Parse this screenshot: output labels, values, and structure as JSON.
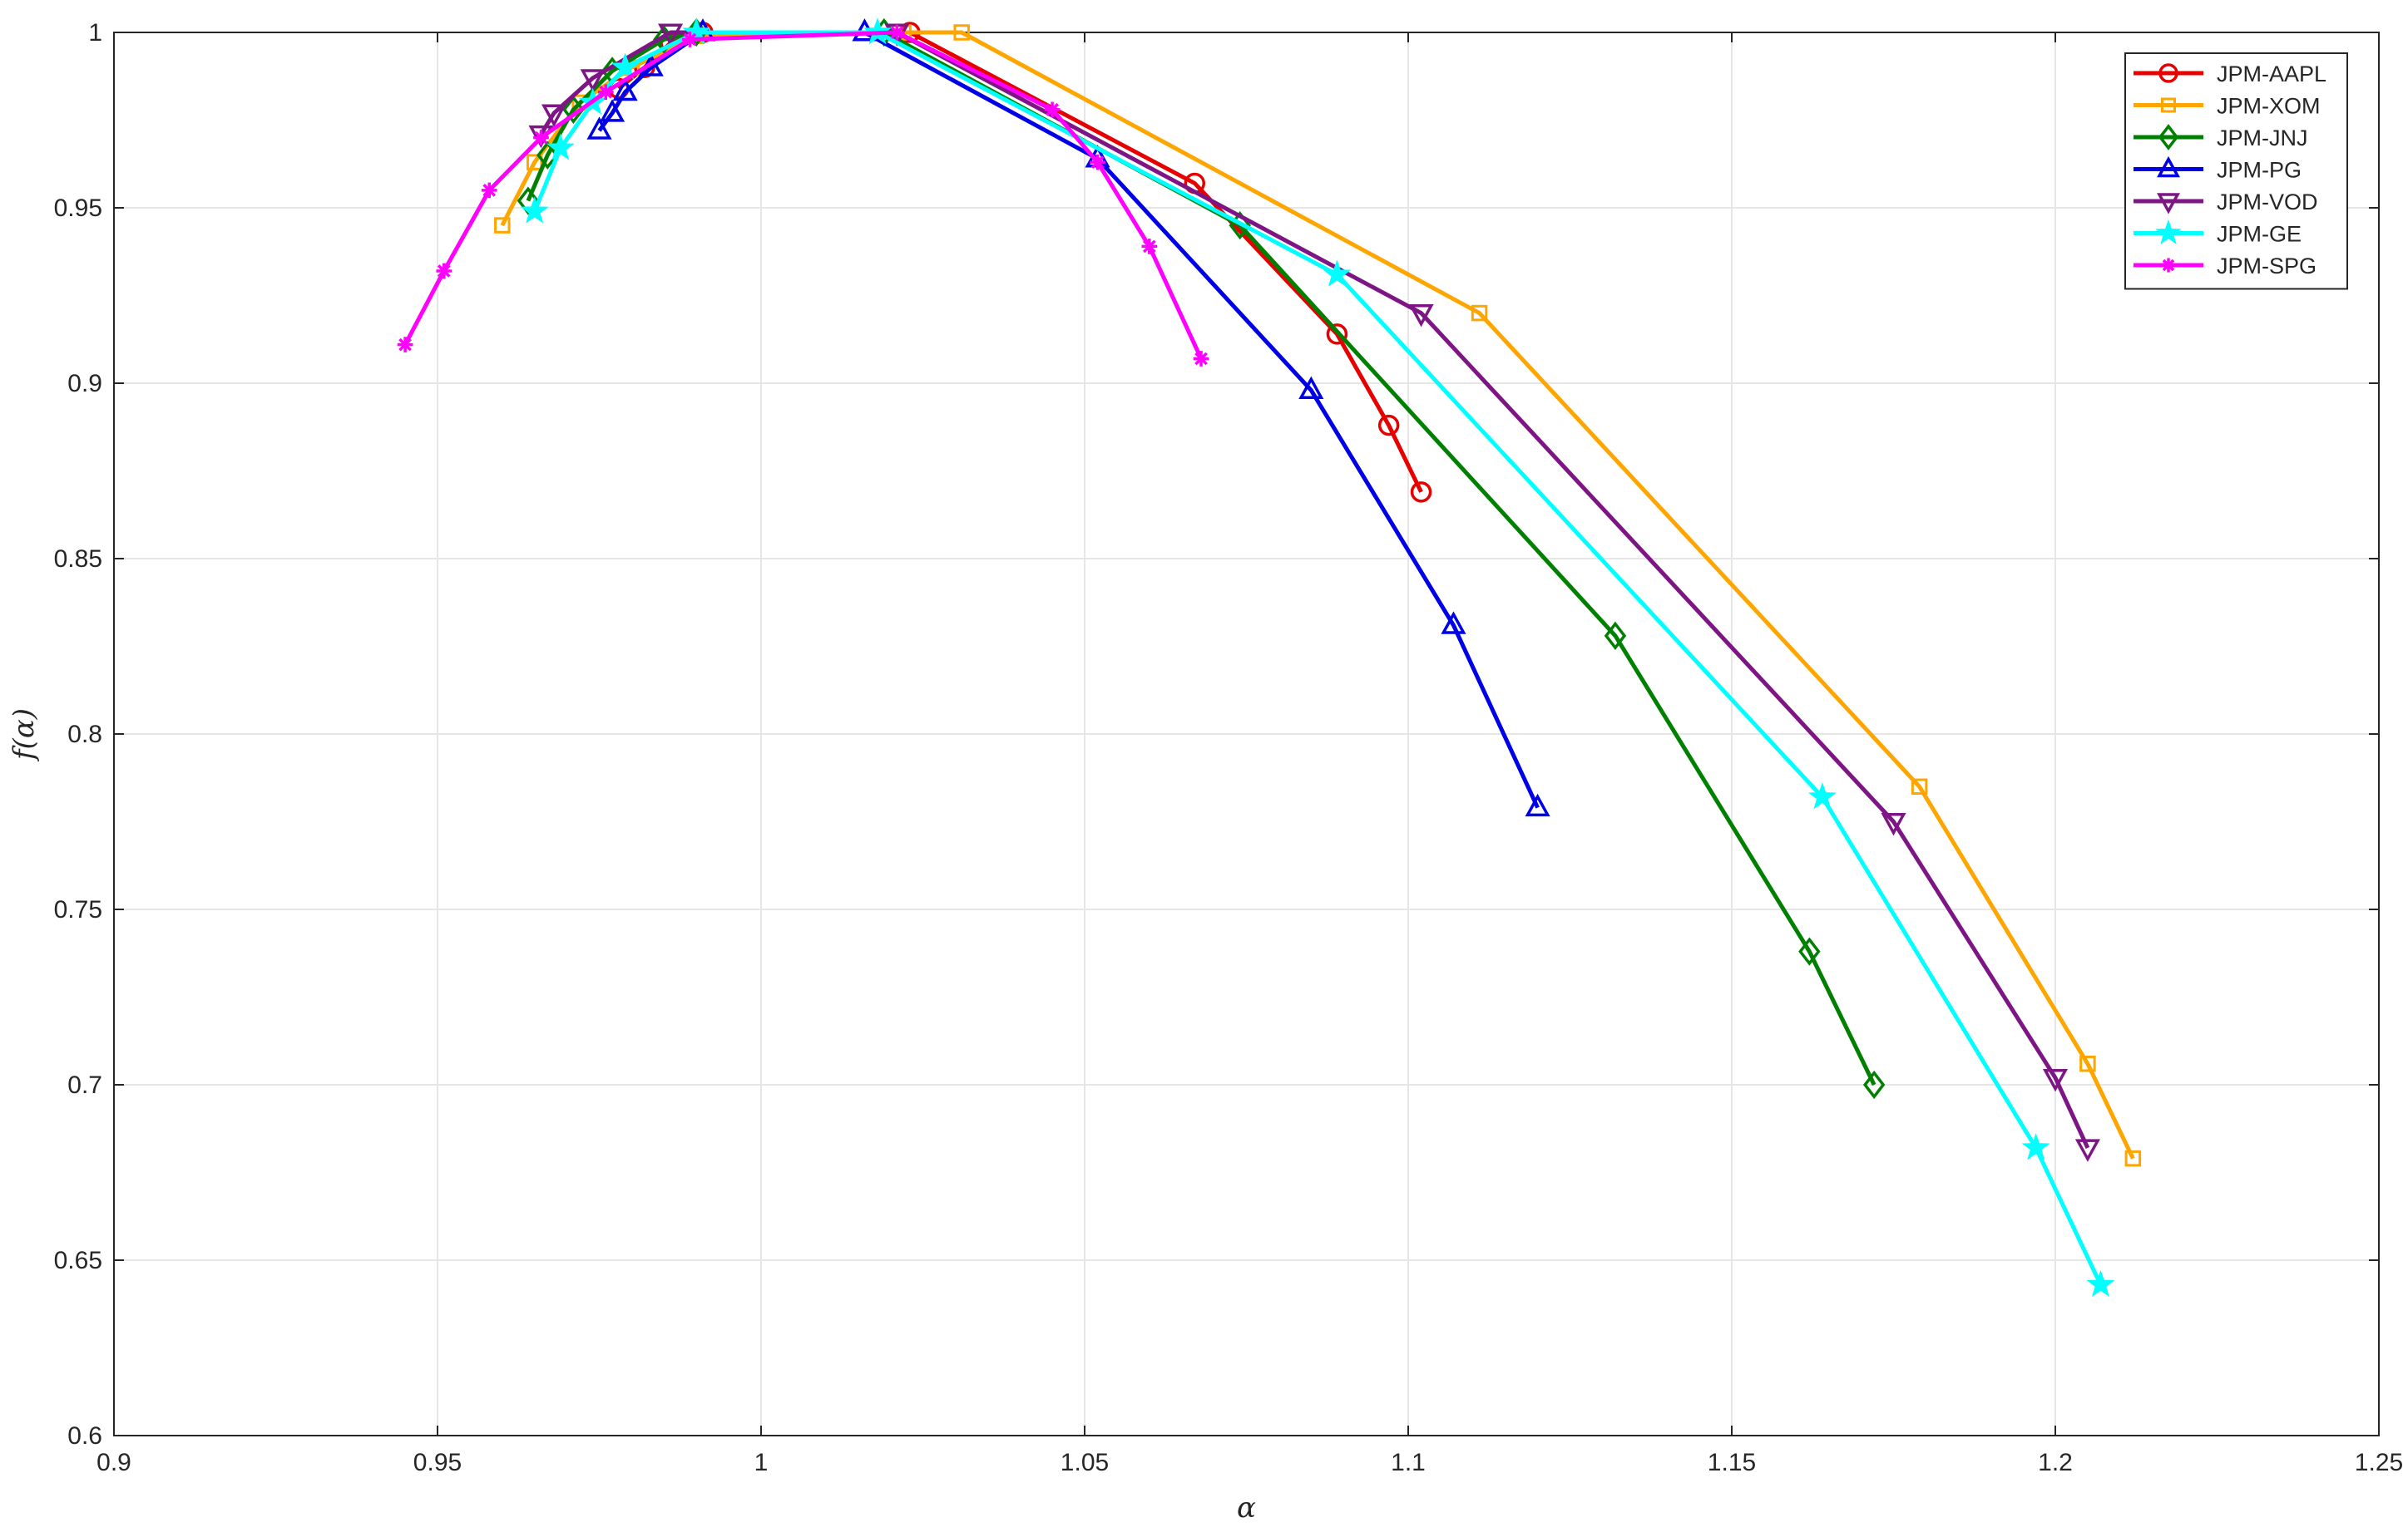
{
  "chart_data": {
    "type": "line",
    "title": "",
    "xlabel": "α",
    "ylabel": "f(α)",
    "xlim": [
      0.9,
      1.25
    ],
    "ylim": [
      0.6,
      1.0
    ],
    "xticks": [
      "0.9",
      "0.95",
      "1",
      "1.05",
      "1.1",
      "1.15",
      "1.2",
      "1.25"
    ],
    "yticks": [
      "0.6",
      "0.65",
      "0.7",
      "0.75",
      "0.8",
      "0.85",
      "0.9",
      "0.95",
      "1"
    ],
    "grid": true,
    "legend_position": "top-right",
    "series": [
      {
        "name": "JPM-AAPL",
        "color": "#e60000",
        "marker": "circle",
        "x": [
          0.978,
          0.982,
          0.986,
          0.991,
          1.023,
          1.067,
          1.089,
          1.097,
          1.102
        ],
        "y": [
          0.984,
          0.99,
          0.997,
          1.0,
          1.0,
          0.957,
          0.914,
          0.888,
          0.869
        ]
      },
      {
        "name": "JPM-XOM",
        "color": "#ffa500",
        "marker": "square",
        "x": [
          0.96,
          0.965,
          0.972,
          0.98,
          0.99,
          1.022,
          1.031,
          1.111,
          1.179,
          1.205,
          1.212
        ],
        "y": [
          0.945,
          0.963,
          0.98,
          0.99,
          0.999,
          1.0,
          1.0,
          0.92,
          0.785,
          0.706,
          0.679
        ]
      },
      {
        "name": "JPM-JNJ",
        "color": "#008000",
        "marker": "diamond",
        "x": [
          0.964,
          0.967,
          0.971,
          0.977,
          0.985,
          0.99,
          1.019,
          1.074,
          1.132,
          1.162,
          1.172
        ],
        "y": [
          0.952,
          0.965,
          0.978,
          0.989,
          0.998,
          1.0,
          1.0,
          0.945,
          0.828,
          0.738,
          0.7
        ]
      },
      {
        "name": "JPM-PG",
        "color": "#0000e6",
        "marker": "triangle-up",
        "x": [
          0.975,
          0.977,
          0.979,
          0.983,
          0.991,
          1.016,
          1.052,
          1.085,
          1.107,
          1.12
        ],
        "y": [
          0.972,
          0.977,
          0.983,
          0.99,
          1.0,
          1.0,
          0.964,
          0.898,
          0.831,
          0.779
        ]
      },
      {
        "name": "JPM-VOD",
        "color": "#7e1585",
        "marker": "triangle-down",
        "x": [
          0.966,
          0.968,
          0.974,
          0.986,
          1.021,
          1.102,
          1.175,
          1.2,
          1.205
        ],
        "y": [
          0.971,
          0.977,
          0.987,
          1.0,
          1.0,
          0.92,
          0.775,
          0.702,
          0.682
        ]
      },
      {
        "name": "JPM-GE",
        "color": "#00ffff",
        "marker": "star",
        "x": [
          0.965,
          0.969,
          0.974,
          0.979,
          0.99,
          1.018,
          1.089,
          1.164,
          1.197,
          1.207
        ],
        "y": [
          0.949,
          0.967,
          0.98,
          0.99,
          1.0,
          1.0,
          0.931,
          0.782,
          0.682,
          0.643
        ]
      },
      {
        "name": "JPM-SPG",
        "color": "#ff00ff",
        "marker": "asterisk",
        "x": [
          0.945,
          0.951,
          0.958,
          0.966,
          0.976,
          0.989,
          1.021,
          1.045,
          1.052,
          1.06,
          1.068
        ],
        "y": [
          0.911,
          0.932,
          0.955,
          0.97,
          0.983,
          0.998,
          1.0,
          0.978,
          0.963,
          0.939,
          0.907
        ]
      }
    ]
  }
}
